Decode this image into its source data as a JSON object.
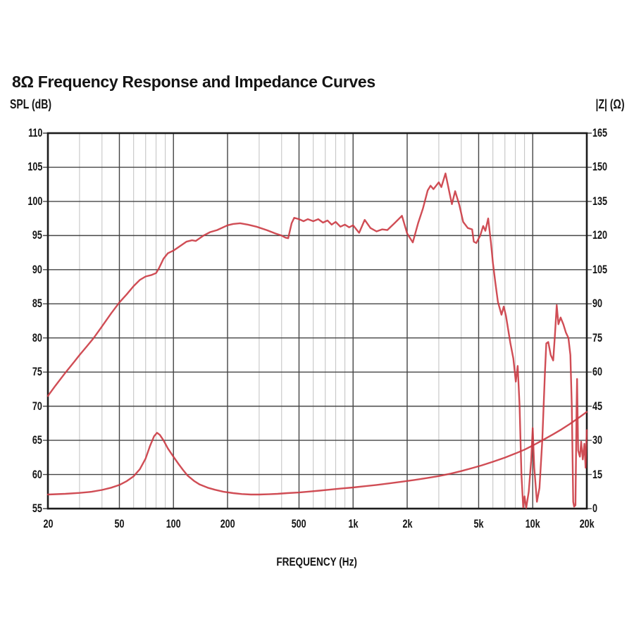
{
  "title": "8Ω Frequency Response and Impedance Curves",
  "xlabel_text": "FREQUENCY (Hz)",
  "colors": {
    "curve": "#cb3a42",
    "grid_major": "#454545",
    "grid_minor": "#c6c6c6",
    "border": "#1c1c1c",
    "background": "#ffffff",
    "text": "#141414"
  },
  "chart_data": {
    "type": "line",
    "title": "8Ω Frequency Response and Impedance Curves",
    "xlabel": "FREQUENCY (Hz)",
    "x_scale": "log",
    "x_range_hz": [
      20,
      20000
    ],
    "grid": true,
    "legend": "none",
    "x_tick_hz": [
      20,
      50,
      100,
      200,
      500,
      1000,
      2000,
      5000,
      10000,
      20000
    ],
    "x_tick_labels": [
      "20",
      "50",
      "100",
      "200",
      "500",
      "1k",
      "2k",
      "5k",
      "10k",
      "20k"
    ],
    "x_major_gridlines_hz": [
      50,
      100,
      200,
      500,
      1000,
      2000,
      5000,
      10000
    ],
    "x_minor_gridlines_hz": [
      30,
      40,
      60,
      70,
      80,
      90,
      300,
      400,
      600,
      700,
      800,
      900,
      3000,
      4000,
      6000,
      7000,
      8000,
      9000
    ],
    "left_y": {
      "label": "SPL (dB)",
      "range": [
        55,
        110
      ],
      "tick_step": 5,
      "ticks": [
        110,
        105,
        100,
        95,
        90,
        85,
        80,
        75,
        70,
        65,
        60,
        55
      ]
    },
    "right_y": {
      "label": "|Z| (Ω)",
      "range": [
        0,
        165
      ],
      "tick_step": 15,
      "ticks": [
        165,
        150,
        135,
        120,
        105,
        90,
        75,
        60,
        45,
        30,
        15,
        0
      ]
    },
    "series": [
      {
        "name": "SPL frequency response",
        "axis": "left",
        "units": "dB",
        "color": "#cb3a42",
        "points": [
          [
            20,
            71.5
          ],
          [
            22,
            73.0
          ],
          [
            25,
            74.9
          ],
          [
            28,
            76.5
          ],
          [
            30,
            77.5
          ],
          [
            33,
            78.8
          ],
          [
            36,
            80.0
          ],
          [
            40,
            81.7
          ],
          [
            45,
            83.6
          ],
          [
            50,
            85.2
          ],
          [
            55,
            86.4
          ],
          [
            60,
            87.6
          ],
          [
            65,
            88.5
          ],
          [
            70,
            89.0
          ],
          [
            75,
            89.2
          ],
          [
            80,
            89.5
          ],
          [
            83,
            90.2
          ],
          [
            88,
            91.6
          ],
          [
            93,
            92.4
          ],
          [
            100,
            92.8
          ],
          [
            108,
            93.4
          ],
          [
            118,
            94.1
          ],
          [
            127,
            94.3
          ],
          [
            133,
            94.2
          ],
          [
            147,
            95.0
          ],
          [
            160,
            95.5
          ],
          [
            175,
            95.8
          ],
          [
            200,
            96.5
          ],
          [
            215,
            96.7
          ],
          [
            235,
            96.8
          ],
          [
            260,
            96.6
          ],
          [
            290,
            96.3
          ],
          [
            330,
            95.8
          ],
          [
            370,
            95.3
          ],
          [
            400,
            95.0
          ],
          [
            420,
            94.7
          ],
          [
            435,
            94.6
          ],
          [
            455,
            96.8
          ],
          [
            470,
            97.6
          ],
          [
            500,
            97.4
          ],
          [
            530,
            97.1
          ],
          [
            560,
            97.4
          ],
          [
            600,
            97.1
          ],
          [
            640,
            97.4
          ],
          [
            680,
            96.9
          ],
          [
            720,
            97.2
          ],
          [
            760,
            96.6
          ],
          [
            800,
            97.0
          ],
          [
            850,
            96.3
          ],
          [
            900,
            96.6
          ],
          [
            950,
            96.2
          ],
          [
            1000,
            96.5
          ],
          [
            1080,
            95.4
          ],
          [
            1160,
            97.3
          ],
          [
            1250,
            96.1
          ],
          [
            1350,
            95.6
          ],
          [
            1450,
            95.9
          ],
          [
            1550,
            95.8
          ],
          [
            1700,
            96.8
          ],
          [
            1870,
            97.9
          ],
          [
            2000,
            95.3
          ],
          [
            2150,
            94.0
          ],
          [
            2300,
            96.8
          ],
          [
            2450,
            99.0
          ],
          [
            2600,
            101.6
          ],
          [
            2700,
            102.3
          ],
          [
            2800,
            101.8
          ],
          [
            3000,
            102.8
          ],
          [
            3100,
            102.1
          ],
          [
            3270,
            104.1
          ],
          [
            3450,
            101.1
          ],
          [
            3550,
            99.6
          ],
          [
            3700,
            101.5
          ],
          [
            3900,
            99.5
          ],
          [
            4100,
            97.0
          ],
          [
            4350,
            96.1
          ],
          [
            4600,
            95.9
          ],
          [
            4700,
            94.1
          ],
          [
            4850,
            93.9
          ],
          [
            5100,
            95.0
          ],
          [
            5300,
            96.4
          ],
          [
            5450,
            95.7
          ],
          [
            5650,
            97.5
          ],
          [
            5850,
            94.0
          ],
          [
            6000,
            91.0
          ],
          [
            6200,
            88.0
          ],
          [
            6400,
            85.3
          ],
          [
            6700,
            83.4
          ],
          [
            6900,
            84.6
          ],
          [
            7100,
            83.2
          ],
          [
            7500,
            79.3
          ],
          [
            7800,
            77.0
          ],
          [
            8050,
            73.6
          ],
          [
            8250,
            75.9
          ],
          [
            8450,
            70.0
          ],
          [
            8650,
            60.0
          ],
          [
            8850,
            55.2
          ],
          [
            9000,
            56.8
          ],
          [
            9200,
            55.1
          ],
          [
            9500,
            57.5
          ],
          [
            9800,
            62.0
          ],
          [
            10000,
            66.8
          ],
          [
            10200,
            61.0
          ],
          [
            10550,
            56.0
          ],
          [
            10900,
            58.0
          ],
          [
            11300,
            65.0
          ],
          [
            11700,
            75.0
          ],
          [
            11900,
            79.2
          ],
          [
            12200,
            79.4
          ],
          [
            12600,
            77.5
          ],
          [
            13000,
            76.7
          ],
          [
            13300,
            80.5
          ],
          [
            13600,
            84.8
          ],
          [
            13900,
            82.0
          ],
          [
            14300,
            83.0
          ],
          [
            14800,
            82.0
          ],
          [
            15300,
            80.8
          ],
          [
            15800,
            80.0
          ],
          [
            16200,
            77.5
          ],
          [
            16500,
            70.0
          ],
          [
            16800,
            56.0
          ],
          [
            17000,
            55.3
          ],
          [
            17300,
            55.5
          ],
          [
            17550,
            70.0
          ],
          [
            17650,
            74.0
          ],
          [
            17900,
            63.5
          ],
          [
            18300,
            62.6
          ],
          [
            18600,
            64.8
          ],
          [
            19000,
            62.2
          ],
          [
            19400,
            64.5
          ],
          [
            19700,
            61.0
          ],
          [
            20000,
            66.5
          ]
        ]
      },
      {
        "name": "Impedance",
        "axis": "right",
        "units": "Ω",
        "color": "#cb3a42",
        "points": [
          [
            20,
            6.2
          ],
          [
            25,
            6.5
          ],
          [
            30,
            6.9
          ],
          [
            35,
            7.4
          ],
          [
            40,
            8.2
          ],
          [
            45,
            9.2
          ],
          [
            50,
            10.4
          ],
          [
            55,
            12.1
          ],
          [
            60,
            14.2
          ],
          [
            65,
            17.3
          ],
          [
            70,
            22.0
          ],
          [
            74,
            27.5
          ],
          [
            78,
            31.8
          ],
          [
            81,
            33.3
          ],
          [
            84,
            32.4
          ],
          [
            88,
            30.0
          ],
          [
            93,
            26.5
          ],
          [
            100,
            22.8
          ],
          [
            107,
            19.5
          ],
          [
            113,
            17.0
          ],
          [
            120,
            14.5
          ],
          [
            130,
            12.2
          ],
          [
            140,
            10.6
          ],
          [
            155,
            9.2
          ],
          [
            170,
            8.3
          ],
          [
            190,
            7.4
          ],
          [
            215,
            6.8
          ],
          [
            240,
            6.4
          ],
          [
            270,
            6.2
          ],
          [
            300,
            6.2
          ],
          [
            340,
            6.3
          ],
          [
            380,
            6.5
          ],
          [
            430,
            6.8
          ],
          [
            500,
            7.1
          ],
          [
            570,
            7.5
          ],
          [
            650,
            7.9
          ],
          [
            750,
            8.4
          ],
          [
            850,
            8.8
          ],
          [
            1000,
            9.3
          ],
          [
            1150,
            9.8
          ],
          [
            1350,
            10.4
          ],
          [
            1600,
            11.1
          ],
          [
            1900,
            11.9
          ],
          [
            2200,
            12.6
          ],
          [
            2600,
            13.5
          ],
          [
            3000,
            14.3
          ],
          [
            3500,
            15.4
          ],
          [
            4000,
            16.5
          ],
          [
            4600,
            17.8
          ],
          [
            5200,
            19.0
          ],
          [
            6000,
            20.6
          ],
          [
            7000,
            22.4
          ],
          [
            8000,
            24.2
          ],
          [
            9000,
            25.9
          ],
          [
            10000,
            27.7
          ],
          [
            11500,
            30.3
          ],
          [
            13000,
            32.7
          ],
          [
            14500,
            34.9
          ],
          [
            16000,
            37.1
          ],
          [
            17500,
            39.2
          ],
          [
            19000,
            41.2
          ],
          [
            20000,
            42.5
          ]
        ]
      }
    ]
  }
}
